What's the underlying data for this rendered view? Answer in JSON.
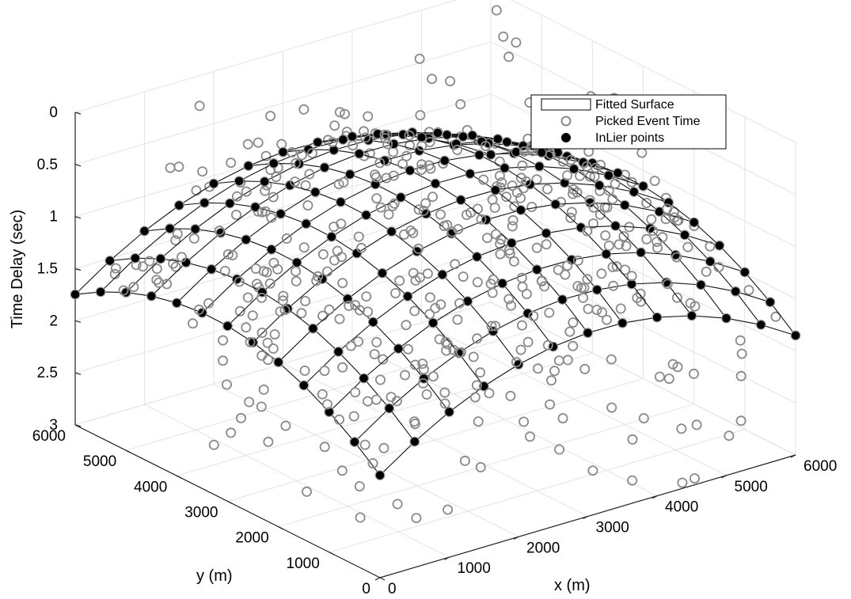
{
  "chart_data": {
    "type": "surface3d",
    "title": "",
    "xlabel": "x (m)",
    "ylabel": "y (m)",
    "zlabel": "Time Delay (sec)",
    "xlim": [
      0,
      6000
    ],
    "ylim": [
      0,
      6000
    ],
    "zlim": [
      0,
      3
    ],
    "z_reversed": true,
    "grid": true,
    "x_ticks": [
      "0",
      "1000",
      "2000",
      "3000",
      "4000",
      "5000",
      "6000"
    ],
    "y_ticks": [
      "0",
      "1000",
      "2000",
      "3000",
      "4000",
      "5000",
      "6000"
    ],
    "z_ticks": [
      "0",
      "0.5",
      "1",
      "1.5",
      "2",
      "2.5",
      "3"
    ],
    "legend_position": "top-right",
    "legend": [
      "Fitted Surface",
      "Picked Event Time",
      "InLier points"
    ],
    "surface": {
      "name": "Fitted Surface",
      "x_range": [
        0,
        6000
      ],
      "y_range": [
        0,
        6000
      ],
      "grid_cells": 12,
      "min_delay": 0.53,
      "min_at": [
        3200,
        3300
      ],
      "corner_delays": {
        "x0_y0": 2.3,
        "x6000_y0": 1.9,
        "x0_y6000": 1.6,
        "x6000_y6000": 1.4
      }
    },
    "scatter_series": [
      {
        "name": "Picked Event Time",
        "marker": "open-circle",
        "color": "#8a8a8a",
        "count": 460,
        "z_range": [
          0.1,
          3.0
        ]
      },
      {
        "name": "InLier points",
        "marker": "filled-circle",
        "color": "#000000",
        "count": 169
      }
    ]
  }
}
